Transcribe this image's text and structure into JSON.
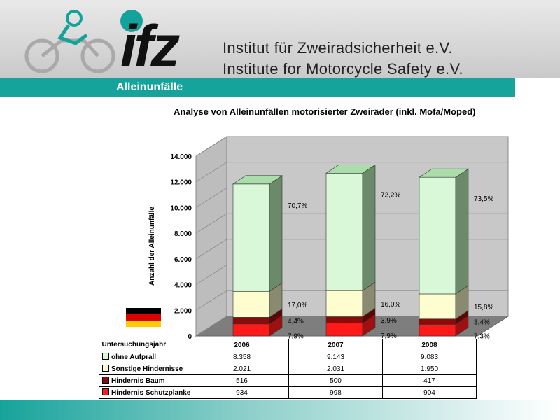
{
  "header": {
    "logo_text": "ifz",
    "institute_de": "Institut für Zweiradsicherheit e.V.",
    "institute_en": "Institute for Motorcycle Safety e.V."
  },
  "topic": "Alleinunfälle",
  "colors": {
    "brand_teal": "#15a39b",
    "ohne_aufprall": "#d8f8d8",
    "sonstige_hindernisse": "#fdfdd0",
    "hindernis_baum": "#8b0a0a",
    "hindernis_schutzplanke": "#ff1a1a",
    "flag": [
      "#000000",
      "#dd0000",
      "#ffcc00"
    ]
  },
  "chart_data": {
    "type": "bar",
    "stacked": true,
    "three_d": true,
    "title": "Analyse von Alleinunfällen motorisierter Zweiräder (inkl. Mofa/Moped)",
    "ylabel": "Anzahl der Alleinunfälle",
    "ylim": [
      0,
      14000
    ],
    "yticks": [
      "0",
      "2.000",
      "4.000",
      "6.000",
      "8.000",
      "10.000",
      "12.000",
      "14.000"
    ],
    "table_header": "Untersuchungsjahr",
    "categories": [
      "2006",
      "2007",
      "2008"
    ],
    "series": [
      {
        "name": "Hindernis Schutzplanke",
        "values": [
          934,
          998,
          904
        ],
        "labels": [
          "934",
          "998",
          "904"
        ],
        "pct": [
          "7,9%",
          "7,9%",
          "7,3%"
        ]
      },
      {
        "name": "Hindernis Baum",
        "values": [
          516,
          500,
          417
        ],
        "labels": [
          "516",
          "500",
          "417"
        ],
        "pct": [
          "4,4%",
          "3,9%",
          "3,4%"
        ]
      },
      {
        "name": "Sonstige Hindernisse",
        "values": [
          2021,
          2031,
          1950
        ],
        "labels": [
          "2.021",
          "2.031",
          "1.950"
        ],
        "pct": [
          "17,0%",
          "16,0%",
          "15,8%"
        ]
      },
      {
        "name": "ohne Aufprall",
        "values": [
          8358,
          9143,
          9083
        ],
        "labels": [
          "8.358",
          "9.143",
          "9.083"
        ],
        "pct": [
          "70,7%",
          "72,2%",
          "73,5%"
        ]
      }
    ],
    "table_row_order": [
      "ohne Aufprall",
      "Sonstige Hindernisse",
      "Hindernis Baum",
      "Hindernis Schutzplanke"
    ],
    "grid": true,
    "legend": "table-below"
  }
}
